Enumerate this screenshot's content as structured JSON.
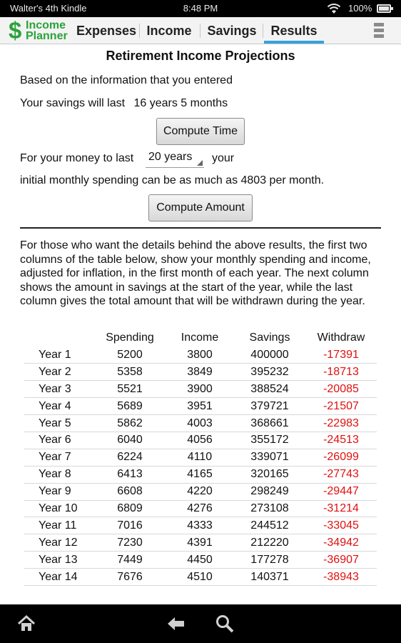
{
  "status_bar": {
    "device_name": "Walter's 4th Kindle",
    "time": "8:48 PM",
    "battery": "100%"
  },
  "app": {
    "logo_symbol": "$",
    "logo_line1": "Income",
    "logo_line2": "Planner",
    "accent_color": "#33a3dc",
    "logo_color": "#2aa33a"
  },
  "tabs": [
    {
      "label": "Expenses",
      "active": false
    },
    {
      "label": "Income",
      "active": false
    },
    {
      "label": "Savings",
      "active": false
    },
    {
      "label": "Results",
      "active": true
    }
  ],
  "results": {
    "title": "Retirement Income Projections",
    "intro": "Based on the information that you entered",
    "savings_last_label": "Your savings will last",
    "savings_last_value": "16 years 5 months",
    "compute_time_label": "Compute Time",
    "money_last_prefix": "For your money to last",
    "money_last_selected": "20 years",
    "money_last_suffix": "your",
    "spending_text": "initial monthly spending can be as much as 4803 per month.",
    "compute_amount_label": "Compute Amount",
    "details_paragraph": "For those who want the details behind the above results, the first two columns of the table below, show your monthly spending and income, adjusted for inflation, in the first month of each year. The next column shows the amount in savings at the start of the year, while the last column gives the total amount that will be withdrawn during the year."
  },
  "table": {
    "headers": [
      "",
      "Spending",
      "Income",
      "Savings",
      "Withdraw"
    ],
    "rows": [
      [
        "Year  1",
        "5200",
        "3800",
        "400000",
        "-17391"
      ],
      [
        "Year  2",
        "5358",
        "3849",
        "395232",
        "-18713"
      ],
      [
        "Year  3",
        "5521",
        "3900",
        "388524",
        "-20085"
      ],
      [
        "Year  4",
        "5689",
        "3951",
        "379721",
        "-21507"
      ],
      [
        "Year  5",
        "5862",
        "4003",
        "368661",
        "-22983"
      ],
      [
        "Year  6",
        "6040",
        "4056",
        "355172",
        "-24513"
      ],
      [
        "Year  7",
        "6224",
        "4110",
        "339071",
        "-26099"
      ],
      [
        "Year  8",
        "6413",
        "4165",
        "320165",
        "-27743"
      ],
      [
        "Year  9",
        "6608",
        "4220",
        "298249",
        "-29447"
      ],
      [
        "Year  10",
        "6809",
        "4276",
        "273108",
        "-31214"
      ],
      [
        "Year  11",
        "7016",
        "4333",
        "244512",
        "-33045"
      ],
      [
        "Year  12",
        "7230",
        "4391",
        "212220",
        "-34942"
      ],
      [
        "Year  13",
        "7449",
        "4450",
        "177278",
        "-36907"
      ],
      [
        "Year  14",
        "7676",
        "4510",
        "140371",
        "-38943"
      ]
    ],
    "negative_color": "#e01010"
  },
  "nav": {
    "home_icon": "home-icon",
    "back_icon": "back-arrow-icon",
    "search_icon": "search-icon"
  }
}
